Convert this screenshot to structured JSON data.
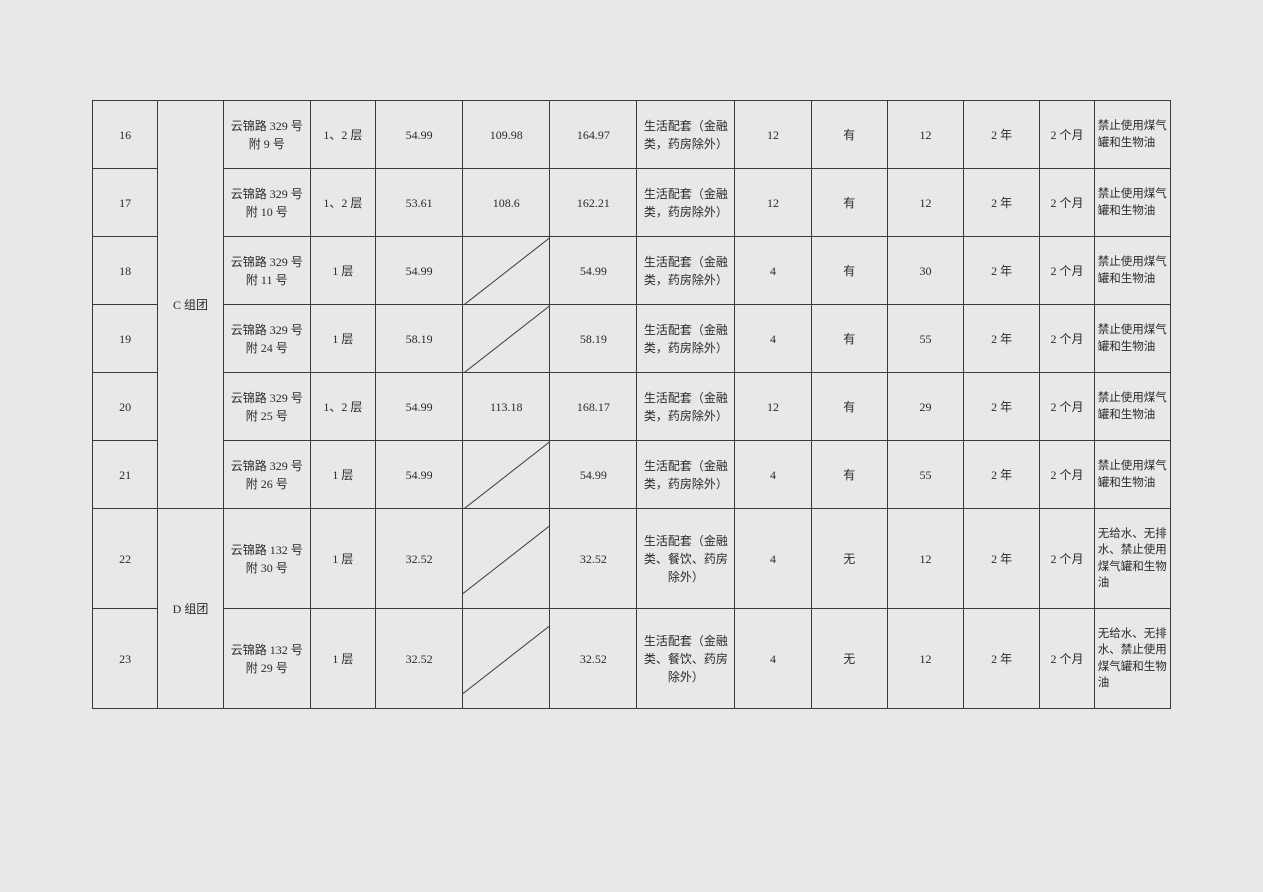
{
  "table": {
    "groups": [
      {
        "label": "C 组团",
        "rowspan": 6
      },
      {
        "label": "D 组团",
        "rowspan": 2
      }
    ],
    "rows": [
      {
        "num": "16",
        "groupIdx": 0,
        "addr": "云锦路 329 号附 9 号",
        "floor": "1、2 层",
        "area1": "54.99",
        "area2": "109.98",
        "area2_diagonal": false,
        "area3": "164.97",
        "usage": "生活配套（金融类，药房除外）",
        "n1": "12",
        "yn": "有",
        "n2": "12",
        "term": "2 年",
        "period": "2 个月",
        "note": "禁止使用煤气罐和生物油"
      },
      {
        "num": "17",
        "groupIdx": 0,
        "addr": "云锦路 329 号附 10 号",
        "floor": "1、2 层",
        "area1": "53.61",
        "area2": "108.6",
        "area2_diagonal": false,
        "area3": "162.21",
        "usage": "生活配套（金融类，药房除外）",
        "n1": "12",
        "yn": "有",
        "n2": "12",
        "term": "2 年",
        "period": "2 个月",
        "note": "禁止使用煤气罐和生物油"
      },
      {
        "num": "18",
        "groupIdx": 0,
        "addr": "云锦路 329 号附 11 号",
        "floor": "1 层",
        "area1": "54.99",
        "area2": "",
        "area2_diagonal": true,
        "area3": "54.99",
        "usage": "生活配套（金融类，药房除外）",
        "n1": "4",
        "yn": "有",
        "n2": "30",
        "term": "2 年",
        "period": "2 个月",
        "note": "禁止使用煤气罐和生物油"
      },
      {
        "num": "19",
        "groupIdx": 0,
        "addr": "云锦路 329 号附 24 号",
        "floor": "1 层",
        "area1": "58.19",
        "area2": "",
        "area2_diagonal": true,
        "area3": "58.19",
        "usage": "生活配套（金融类，药房除外）",
        "n1": "4",
        "yn": "有",
        "n2": "55",
        "term": "2 年",
        "period": "2 个月",
        "note": "禁止使用煤气罐和生物油"
      },
      {
        "num": "20",
        "groupIdx": 0,
        "addr": "云锦路 329 号附 25 号",
        "floor": "1、2 层",
        "area1": "54.99",
        "area2": "113.18",
        "area2_diagonal": false,
        "area3": "168.17",
        "usage": "生活配套（金融类，药房除外）",
        "n1": "12",
        "yn": "有",
        "n2": "29",
        "term": "2 年",
        "period": "2 个月",
        "note": "禁止使用煤气罐和生物油"
      },
      {
        "num": "21",
        "groupIdx": 0,
        "addr": "云锦路 329 号附 26 号",
        "floor": "1 层",
        "area1": "54.99",
        "area2": "",
        "area2_diagonal": true,
        "area3": "54.99",
        "usage": "生活配套（金融类，药房除外）",
        "n1": "4",
        "yn": "有",
        "n2": "55",
        "term": "2 年",
        "period": "2 个月",
        "note": "禁止使用煤气罐和生物油"
      },
      {
        "num": "22",
        "groupIdx": 1,
        "addr": "云锦路 132 号附 30 号",
        "floor": "1 层",
        "area1": "32.52",
        "area2": "",
        "area2_diagonal": true,
        "area3": "32.52",
        "usage": "生活配套（金融类、餐饮、药房除外）",
        "n1": "4",
        "yn": "无",
        "n2": "12",
        "term": "2 年",
        "period": "2 个月",
        "note": "无给水、无排水、禁止使用煤气罐和生物油",
        "tall": true
      },
      {
        "num": "23",
        "groupIdx": 1,
        "addr": "云锦路 132 号附 29 号",
        "floor": "1 层",
        "area1": "32.52",
        "area2": "",
        "area2_diagonal": true,
        "area3": "32.52",
        "usage": "生活配套（金融类、餐饮、药房除外）",
        "n1": "4",
        "yn": "无",
        "n2": "12",
        "term": "2 年",
        "period": "2 个月",
        "note": "无给水、无排水、禁止使用煤气罐和生物油",
        "tall": true
      }
    ],
    "col_widths": {
      "num": 60,
      "group": 60,
      "addr": 80,
      "floor": 60,
      "area1": 80,
      "area2": 80,
      "area3": 80,
      "usage": 90,
      "n1": 70,
      "yn": 70,
      "n2": 70,
      "term": 70,
      "period": 50,
      "note": 70
    },
    "colors": {
      "background": "#e8e8e6",
      "border": "#3a3a3a",
      "text": "#2a2a2a"
    },
    "font": {
      "family": "SimSun",
      "size_pt": 12
    }
  }
}
